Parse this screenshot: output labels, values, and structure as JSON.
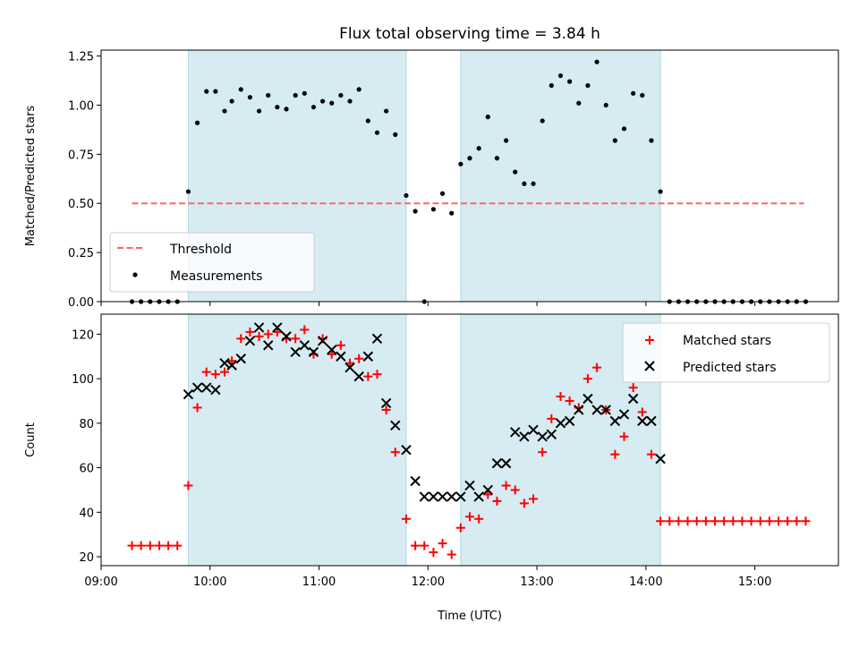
{
  "title": "Flux total observing time = 3.84 h",
  "xlabel": "Time (UTC)",
  "x_ticks": [
    "09:00",
    "10:00",
    "11:00",
    "12:00",
    "13:00",
    "14:00",
    "15:00"
  ],
  "colors": {
    "shade": "#add8e6",
    "threshold": "#ff6666",
    "matched": "#ff0000",
    "predicted": "#000000"
  },
  "chart_data": [
    {
      "type": "scatter",
      "ylabel": "Matched/Predicted stars",
      "xlim": [
        "09:00",
        "15:46"
      ],
      "ylim": [
        0,
        1.28
      ],
      "y_ticks": [
        "0.00",
        "0.25",
        "0.50",
        "0.75",
        "1.00",
        "1.25"
      ],
      "shaded_intervals": [
        [
          "09:48",
          "11:48"
        ],
        [
          "12:18",
          "14:08"
        ]
      ],
      "legend_placement": "lower-left",
      "threshold": {
        "name": "Threshold",
        "value": 0.5,
        "x_range": [
          "09:17",
          "15:27"
        ]
      },
      "series": [
        {
          "name": "Measurements",
          "x": [
            "09:17",
            "09:22",
            "09:27",
            "09:32",
            "09:37",
            "09:42",
            "09:48",
            "09:53",
            "09:58",
            "10:03",
            "10:08",
            "10:12",
            "10:17",
            "10:22",
            "10:27",
            "10:32",
            "10:37",
            "10:42",
            "10:47",
            "10:52",
            "10:57",
            "11:02",
            "11:07",
            "11:12",
            "11:17",
            "11:22",
            "11:27",
            "11:32",
            "11:37",
            "11:42",
            "11:48",
            "11:53",
            "11:58",
            "12:03",
            "12:08",
            "12:13",
            "12:18",
            "12:23",
            "12:28",
            "12:33",
            "12:38",
            "12:43",
            "12:48",
            "12:53",
            "12:58",
            "13:03",
            "13:08",
            "13:13",
            "13:18",
            "13:23",
            "13:28",
            "13:33",
            "13:38",
            "13:43",
            "13:48",
            "13:53",
            "13:58",
            "14:03",
            "14:08",
            "14:13",
            "14:18",
            "14:23",
            "14:28",
            "14:33",
            "14:38",
            "14:43",
            "14:48",
            "14:53",
            "14:58",
            "15:03",
            "15:08",
            "15:13",
            "15:18",
            "15:23",
            "15:28"
          ],
          "y": [
            0,
            0,
            0,
            0,
            0,
            0,
            0.56,
            0.91,
            1.07,
            1.07,
            0.97,
            1.02,
            1.08,
            1.04,
            0.97,
            1.05,
            0.99,
            0.98,
            1.05,
            1.06,
            0.99,
            1.02,
            1.01,
            1.05,
            1.02,
            1.08,
            0.92,
            0.86,
            0.97,
            0.85,
            0.54,
            0.46,
            0,
            0.47,
            0.55,
            0.45,
            0.7,
            0.73,
            0.78,
            0.94,
            0.73,
            0.82,
            0.66,
            0.6,
            0.6,
            0.92,
            1.1,
            1.15,
            1.12,
            1.01,
            1.1,
            1.22,
            1.0,
            0.82,
            0.88,
            1.06,
            1.05,
            0.82,
            0.56,
            0,
            0,
            0,
            0,
            0,
            0,
            0,
            0,
            0,
            0,
            0,
            0,
            0,
            0,
            0,
            0
          ]
        }
      ]
    },
    {
      "type": "scatter",
      "ylabel": "Count",
      "xlim": [
        "09:00",
        "15:46"
      ],
      "ylim": [
        16,
        129
      ],
      "y_ticks": [
        "20",
        "40",
        "60",
        "80",
        "100",
        "120"
      ],
      "shaded_intervals": [
        [
          "09:48",
          "11:48"
        ],
        [
          "12:18",
          "14:08"
        ]
      ],
      "legend_placement": "upper-right",
      "series": [
        {
          "name": "Matched stars",
          "marker": "+",
          "x": [
            "09:17",
            "09:22",
            "09:27",
            "09:32",
            "09:37",
            "09:42",
            "09:48",
            "09:53",
            "09:58",
            "10:03",
            "10:08",
            "10:12",
            "10:17",
            "10:22",
            "10:27",
            "10:32",
            "10:37",
            "10:42",
            "10:47",
            "10:52",
            "10:57",
            "11:02",
            "11:07",
            "11:12",
            "11:17",
            "11:22",
            "11:27",
            "11:32",
            "11:37",
            "11:42",
            "11:48",
            "11:53",
            "11:58",
            "12:03",
            "12:08",
            "12:13",
            "12:18",
            "12:23",
            "12:28",
            "12:33",
            "12:38",
            "12:43",
            "12:48",
            "12:53",
            "12:58",
            "13:03",
            "13:08",
            "13:13",
            "13:18",
            "13:23",
            "13:28",
            "13:33",
            "13:38",
            "13:43",
            "13:48",
            "13:53",
            "13:58",
            "14:03",
            "14:08",
            "14:13",
            "14:18",
            "14:23",
            "14:28",
            "14:33",
            "14:38",
            "14:43",
            "14:48",
            "14:53",
            "14:58",
            "15:03",
            "15:08",
            "15:13",
            "15:18",
            "15:23",
            "15:28"
          ],
          "y": [
            25,
            25,
            25,
            25,
            25,
            25,
            52,
            87,
            103,
            102,
            103,
            108,
            118,
            121,
            119,
            120,
            121,
            118,
            118,
            122,
            111,
            118,
            111,
            115,
            107,
            109,
            101,
            102,
            86,
            67,
            37,
            25,
            25,
            22,
            26,
            21,
            33,
            38,
            37,
            48,
            45,
            52,
            50,
            44,
            46,
            67,
            82,
            92,
            90,
            87,
            100,
            105,
            86,
            66,
            74,
            96,
            85,
            66,
            36,
            36,
            36,
            36,
            36,
            36,
            36,
            36,
            36,
            36,
            36,
            36,
            36,
            36,
            36,
            36,
            36
          ]
        },
        {
          "name": "Predicted stars",
          "marker": "x",
          "x": [
            "09:48",
            "09:53",
            "09:58",
            "10:03",
            "10:08",
            "10:12",
            "10:17",
            "10:22",
            "10:27",
            "10:32",
            "10:37",
            "10:42",
            "10:47",
            "10:52",
            "10:57",
            "11:02",
            "11:07",
            "11:12",
            "11:17",
            "11:22",
            "11:27",
            "11:32",
            "11:37",
            "11:42",
            "11:48",
            "11:53",
            "11:58",
            "12:03",
            "12:08",
            "12:13",
            "12:18",
            "12:23",
            "12:28",
            "12:33",
            "12:38",
            "12:43",
            "12:48",
            "12:53",
            "12:58",
            "13:03",
            "13:08",
            "13:13",
            "13:18",
            "13:23",
            "13:28",
            "13:33",
            "13:38",
            "13:43",
            "13:48",
            "13:53",
            "13:58",
            "14:03",
            "14:08"
          ],
          "y": [
            93,
            96,
            96,
            95,
            107,
            106,
            109,
            117,
            123,
            115,
            123,
            119,
            112,
            115,
            112,
            117,
            113,
            110,
            105,
            101,
            110,
            118,
            89,
            79,
            68,
            54,
            47,
            47,
            47,
            47,
            47,
            52,
            47,
            50,
            62,
            62,
            76,
            74,
            77,
            74,
            75,
            80,
            81,
            86,
            91,
            86,
            86,
            81,
            84,
            91,
            81,
            81,
            64
          ]
        }
      ]
    }
  ]
}
